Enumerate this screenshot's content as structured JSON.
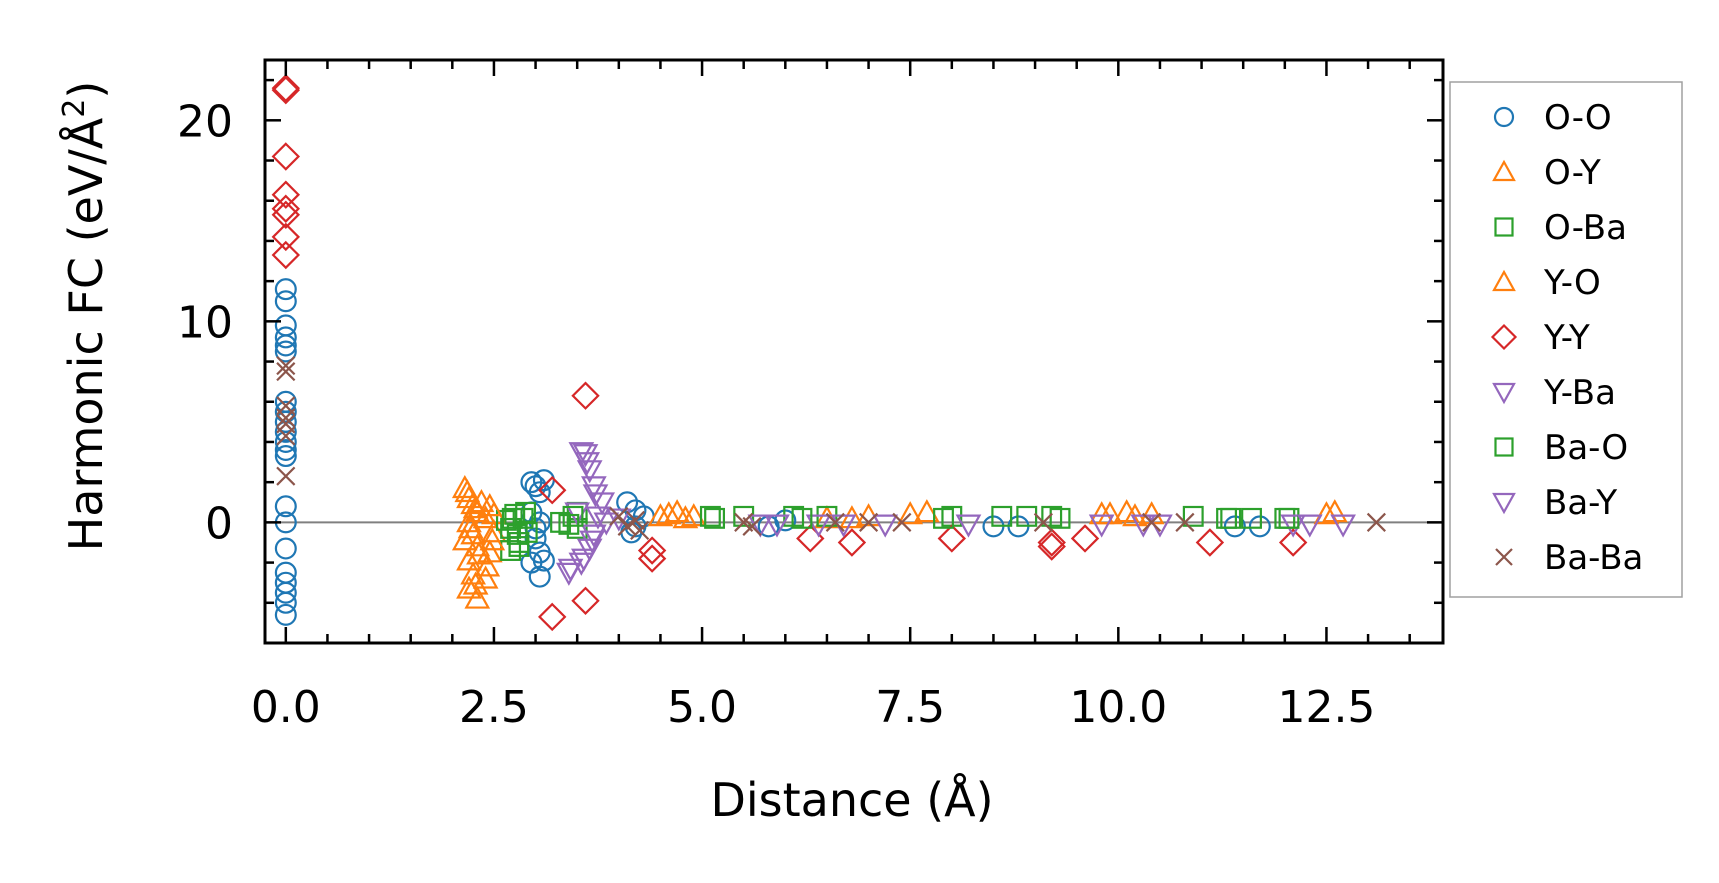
{
  "chart_data": {
    "type": "scatter",
    "xlabel": "Distance (Å)",
    "ylabel_main": "Harmonic FC (eV/Å",
    "ylabel_sup": "2",
    "ylabel_close": ")",
    "xlim": [
      -0.25,
      13.9
    ],
    "ylim": [
      -6.0,
      23.0
    ],
    "xticks": [
      0.0,
      2.5,
      5.0,
      7.5,
      10.0,
      12.5
    ],
    "xtick_labels": [
      "0.0",
      "2.5",
      "5.0",
      "7.5",
      "10.0",
      "12.5"
    ],
    "yticks": [
      0,
      10,
      20
    ],
    "ytick_labels": [
      "0",
      "10",
      "20"
    ],
    "zero_line": 0,
    "legend_position": "outside-right",
    "colors": {
      "blue": "#1f77b4",
      "orange": "#ff7f0e",
      "green": "#2ca02c",
      "red": "#d62728",
      "purple": "#9467bd",
      "brown": "#8c564b",
      "zero_line": "#808080"
    },
    "series": [
      {
        "name": "O-O",
        "marker": "circle",
        "color": "#1f77b4",
        "points": [
          [
            0,
            11.6
          ],
          [
            0,
            11.0
          ],
          [
            0,
            9.8
          ],
          [
            0,
            9.2
          ],
          [
            0,
            8.8
          ],
          [
            0,
            8.5
          ],
          [
            0,
            6.0
          ],
          [
            0,
            5.5
          ],
          [
            0,
            5.0
          ],
          [
            0,
            4.5
          ],
          [
            0,
            4.0
          ],
          [
            0,
            3.6
          ],
          [
            0,
            3.3
          ],
          [
            0,
            0.8
          ],
          [
            0,
            0.0
          ],
          [
            0,
            -1.3
          ],
          [
            0,
            -2.5
          ],
          [
            0,
            -3.0
          ],
          [
            0,
            -3.5
          ],
          [
            0,
            -4.0
          ],
          [
            0,
            -4.6
          ],
          [
            2.95,
            2.0
          ],
          [
            3.0,
            1.8
          ],
          [
            3.05,
            1.5
          ],
          [
            3.1,
            2.1
          ],
          [
            2.95,
            0.5
          ],
          [
            3.05,
            0.0
          ],
          [
            3.0,
            -0.8
          ],
          [
            3.05,
            -1.5
          ],
          [
            2.95,
            -2.0
          ],
          [
            3.05,
            -2.7
          ],
          [
            3.1,
            -1.9
          ],
          [
            3.0,
            -0.3
          ],
          [
            4.1,
            1.0
          ],
          [
            4.2,
            0.6
          ],
          [
            4.15,
            -0.5
          ],
          [
            4.2,
            -0.2
          ],
          [
            4.3,
            0.3
          ],
          [
            5.8,
            -0.2
          ],
          [
            6.0,
            0.1
          ],
          [
            8.5,
            -0.2
          ],
          [
            8.8,
            -0.2
          ],
          [
            11.4,
            -0.2
          ],
          [
            11.7,
            -0.2
          ]
        ]
      },
      {
        "name": "O-Y",
        "marker": "triangle-up",
        "color": "#ff7f0e",
        "points": [
          [
            2.15,
            1.7
          ],
          [
            2.2,
            1.2
          ],
          [
            2.25,
            0.9
          ],
          [
            2.3,
            0.5
          ],
          [
            2.2,
            0.0
          ],
          [
            2.25,
            -0.6
          ],
          [
            2.3,
            -1.2
          ],
          [
            2.2,
            -1.9
          ],
          [
            2.25,
            -2.6
          ],
          [
            2.2,
            -3.3
          ],
          [
            2.3,
            -3.8
          ],
          [
            2.4,
            -2.8
          ],
          [
            2.45,
            -1.5
          ],
          [
            2.5,
            -0.5
          ],
          [
            2.5,
            0.4
          ],
          [
            2.35,
            1.0
          ],
          [
            2.4,
            0.2
          ],
          [
            2.15,
            -0.9
          ],
          [
            4.5,
            0.3
          ],
          [
            4.7,
            0.5
          ],
          [
            4.9,
            0.3
          ],
          [
            6.5,
            0.2
          ],
          [
            7.0,
            0.3
          ],
          [
            7.7,
            0.5
          ],
          [
            9.8,
            0.4
          ],
          [
            10.1,
            0.5
          ],
          [
            10.4,
            0.4
          ],
          [
            12.6,
            0.5
          ]
        ]
      },
      {
        "name": "O-Ba",
        "marker": "square",
        "color": "#2ca02c",
        "points": [
          [
            2.65,
            0.1
          ],
          [
            2.7,
            -0.3
          ],
          [
            2.75,
            0.4
          ],
          [
            2.8,
            -1.0
          ],
          [
            2.85,
            0.2
          ],
          [
            2.9,
            -0.5
          ],
          [
            2.7,
            -1.4
          ],
          [
            3.3,
            0.0
          ],
          [
            3.5,
            -0.3
          ],
          [
            3.5,
            0.5
          ],
          [
            5.1,
            0.3
          ],
          [
            5.5,
            0.3
          ],
          [
            6.1,
            0.3
          ],
          [
            6.5,
            0.3
          ],
          [
            8.0,
            0.3
          ],
          [
            8.6,
            0.3
          ],
          [
            8.9,
            0.3
          ],
          [
            9.2,
            0.3
          ],
          [
            10.9,
            0.3
          ],
          [
            11.3,
            0.2
          ],
          [
            11.6,
            0.2
          ],
          [
            12.0,
            0.2
          ]
        ]
      },
      {
        "name": "Y-O",
        "marker": "triangle-up",
        "color": "#ff7f0e",
        "points": [
          [
            2.18,
            1.5
          ],
          [
            2.28,
            0.7
          ],
          [
            2.22,
            -0.3
          ],
          [
            2.32,
            -1.6
          ],
          [
            2.28,
            -3.1
          ],
          [
            2.42,
            -2.2
          ],
          [
            2.48,
            -0.9
          ],
          [
            2.45,
            0.8
          ],
          [
            4.6,
            0.4
          ],
          [
            4.8,
            0.2
          ],
          [
            6.8,
            0.2
          ],
          [
            7.5,
            0.4
          ],
          [
            9.9,
            0.4
          ],
          [
            10.2,
            0.3
          ],
          [
            12.5,
            0.4
          ]
        ]
      },
      {
        "name": "Y-Y",
        "marker": "diamond",
        "color": "#d62728",
        "points": [
          [
            0,
            21.6
          ],
          [
            0,
            21.5
          ],
          [
            0,
            18.2
          ],
          [
            0,
            16.3
          ],
          [
            0,
            15.6
          ],
          [
            0,
            15.3
          ],
          [
            0,
            14.2
          ],
          [
            0,
            13.3
          ],
          [
            3.2,
            1.6
          ],
          [
            3.2,
            -4.7
          ],
          [
            3.6,
            6.3
          ],
          [
            3.6,
            -3.9
          ],
          [
            4.4,
            -1.8
          ],
          [
            4.4,
            -1.4
          ],
          [
            6.3,
            -0.8
          ],
          [
            6.8,
            -1.0
          ],
          [
            8.0,
            -0.8
          ],
          [
            9.2,
            -1.0
          ],
          [
            9.2,
            -1.2
          ],
          [
            9.6,
            -0.8
          ],
          [
            11.1,
            -1.0
          ],
          [
            12.1,
            -1.0
          ]
        ]
      },
      {
        "name": "Y-Ba",
        "marker": "triangle-down",
        "color": "#9467bd",
        "points": [
          [
            3.4,
            -2.5
          ],
          [
            3.55,
            -2.0
          ],
          [
            3.65,
            -1.3
          ],
          [
            3.7,
            -0.6
          ],
          [
            3.75,
            0.3
          ],
          [
            3.8,
            1.0
          ],
          [
            3.7,
            1.8
          ],
          [
            3.65,
            2.6
          ],
          [
            3.6,
            3.4
          ],
          [
            3.5,
            0.5
          ],
          [
            4.0,
            0.2
          ],
          [
            5.7,
            -0.1
          ],
          [
            6.4,
            -0.1
          ],
          [
            7.2,
            -0.1
          ],
          [
            9.8,
            -0.1
          ],
          [
            10.3,
            -0.1
          ],
          [
            12.1,
            -0.1
          ],
          [
            12.7,
            -0.1
          ]
        ]
      },
      {
        "name": "Ba-O",
        "marker": "square",
        "color": "#2ca02c",
        "points": [
          [
            2.72,
            0.2
          ],
          [
            2.78,
            -0.6
          ],
          [
            2.88,
            0.5
          ],
          [
            2.8,
            -1.2
          ],
          [
            3.4,
            -0.1
          ],
          [
            3.45,
            0.3
          ],
          [
            5.15,
            0.2
          ],
          [
            6.2,
            0.2
          ],
          [
            7.9,
            0.2
          ],
          [
            9.3,
            0.2
          ],
          [
            11.35,
            0.2
          ],
          [
            12.05,
            0.2
          ]
        ]
      },
      {
        "name": "Ba-Y",
        "marker": "triangle-down",
        "color": "#9467bd",
        "points": [
          [
            3.42,
            -2.3
          ],
          [
            3.58,
            -1.8
          ],
          [
            3.68,
            -0.9
          ],
          [
            3.72,
            1.4
          ],
          [
            3.62,
            3.0
          ],
          [
            3.55,
            3.5
          ],
          [
            3.85,
            0.0
          ],
          [
            5.9,
            -0.1
          ],
          [
            6.7,
            -0.1
          ],
          [
            8.2,
            -0.1
          ],
          [
            10.5,
            -0.1
          ],
          [
            12.3,
            -0.1
          ]
        ]
      },
      {
        "name": "Ba-Ba",
        "marker": "x",
        "color": "#8c564b",
        "points": [
          [
            0,
            7.8
          ],
          [
            0,
            7.5
          ],
          [
            0,
            5.8
          ],
          [
            0,
            5.2
          ],
          [
            0,
            4.9
          ],
          [
            0,
            4.3
          ],
          [
            0,
            2.3
          ],
          [
            4.0,
            0.3
          ],
          [
            4.1,
            -0.2
          ],
          [
            4.2,
            0.1
          ],
          [
            4.25,
            -0.4
          ],
          [
            5.5,
            0.0
          ],
          [
            5.6,
            -0.2
          ],
          [
            6.6,
            0.0
          ],
          [
            7.0,
            0.0
          ],
          [
            7.4,
            0.0
          ],
          [
            9.1,
            0.0
          ],
          [
            10.4,
            0.0
          ],
          [
            10.8,
            0.0
          ],
          [
            13.1,
            0.0
          ]
        ]
      }
    ]
  }
}
